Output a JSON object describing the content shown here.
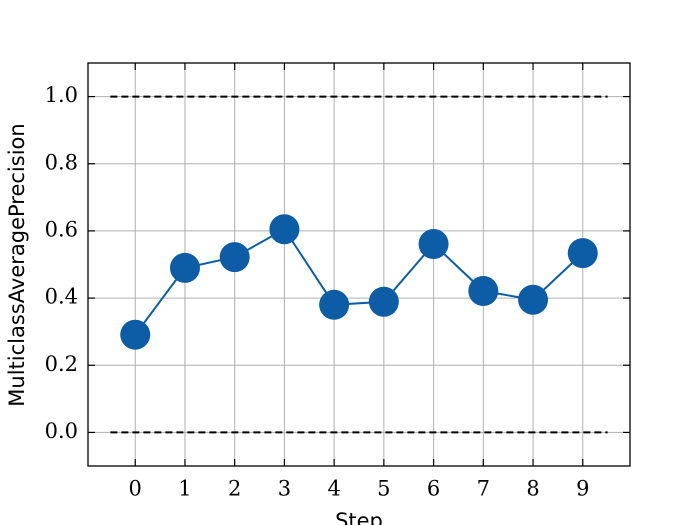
{
  "chart_data": {
    "type": "line",
    "x_label": "Step",
    "y_label": "MulticlassAveragePrecision",
    "x": [
      0,
      1,
      2,
      3,
      4,
      5,
      6,
      7,
      8,
      9
    ],
    "series": [
      {
        "color": "#0c5da5",
        "values": [
          0.291,
          0.49,
          0.522,
          0.605,
          0.38,
          0.389,
          0.561,
          0.421,
          0.395,
          0.534
        ]
      }
    ],
    "hlines": [
      {
        "y": 0,
        "xmin": -0.5,
        "xmax": 9.5
      },
      {
        "y": 1,
        "xmin": -0.5,
        "xmax": 9.5
      }
    ],
    "xlim": [
      -0.95,
      9.95
    ],
    "ylim": [
      -0.1,
      1.1
    ],
    "xticks": [
      0,
      1,
      2,
      3,
      4,
      5,
      6,
      7,
      8,
      9
    ],
    "yticks": [
      {
        "value": 0,
        "label": "0.0"
      },
      {
        "value": 0.2,
        "label": "0.2"
      },
      {
        "value": 0.4,
        "label": "0.4"
      },
      {
        "value": 0.6,
        "label": "0.6"
      },
      {
        "value": 0.8,
        "label": "0.8"
      },
      {
        "value": 1,
        "label": "1.0"
      }
    ],
    "grid": true
  }
}
